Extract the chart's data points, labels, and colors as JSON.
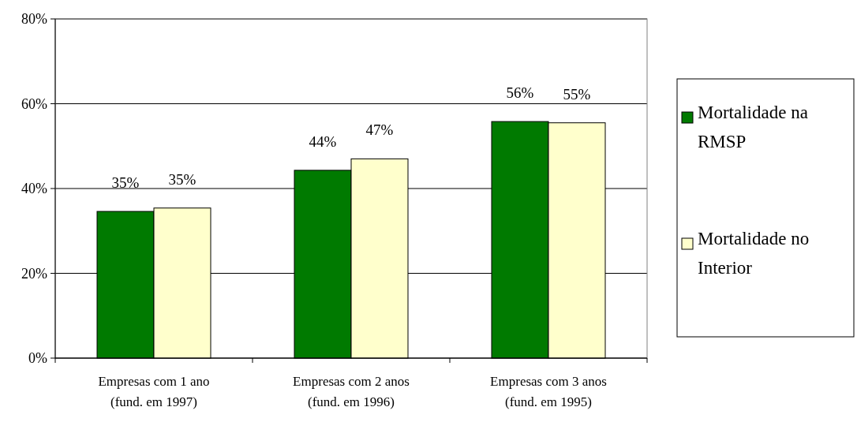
{
  "chart_data": {
    "type": "bar",
    "categories": [
      "Empresas com 1 ano\n(fund. em 1997)",
      "Empresas com 2 anos\n(fund. em 1996)",
      "Empresas com 3 anos\n(fund. em 1995)"
    ],
    "series": [
      {
        "name": "Mortalidade na RMSP",
        "color": "#007a00",
        "values": [
          34.6,
          44.3,
          55.8
        ],
        "value_labels": [
          "35%",
          "44%",
          "56%"
        ]
      },
      {
        "name": "Mortalidade no Interior",
        "color": "#ffffcc",
        "values": [
          35.4,
          47,
          55.5
        ],
        "value_labels": [
          "35%",
          "47%",
          "55%"
        ]
      }
    ],
    "ylim": [
      0,
      80
    ],
    "yticks": [
      {
        "value": 0,
        "label": "0%"
      },
      {
        "value": 20,
        "label": "20%"
      },
      {
        "value": 40,
        "label": "40%"
      },
      {
        "value": 60,
        "label": "60%"
      },
      {
        "value": 80,
        "label": "80%"
      }
    ],
    "grid": "y",
    "legend": "right"
  }
}
